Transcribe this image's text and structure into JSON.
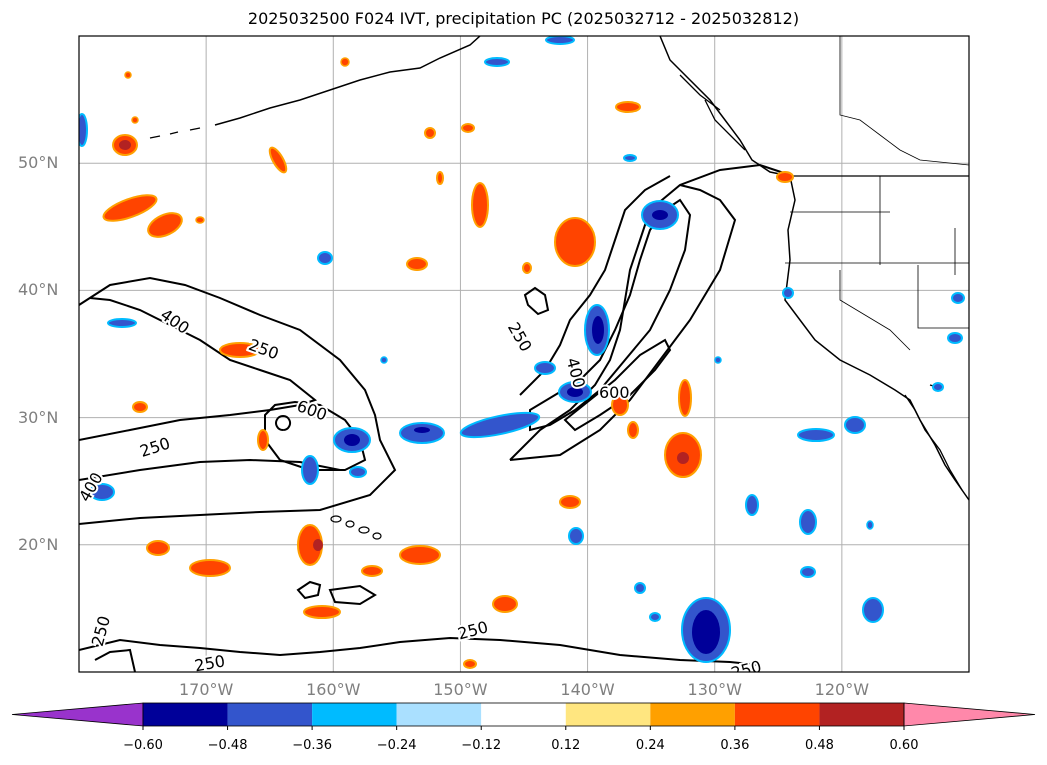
{
  "title": "2025032500 F024 IVT, precipitation PC (2025032712 - 2025032812)",
  "map": {
    "lat_range": [
      10,
      60
    ],
    "lon_range": [
      -180,
      -110
    ],
    "lat_ticks": [
      {
        "value": 50,
        "label": "50°N"
      },
      {
        "value": 40,
        "label": "40°N"
      },
      {
        "value": 30,
        "label": "30°N"
      },
      {
        "value": 20,
        "label": "20°N"
      }
    ],
    "lon_ticks": [
      {
        "value": -170,
        "label": "170°W"
      },
      {
        "value": -160,
        "label": "160°W"
      },
      {
        "value": -150,
        "label": "150°W"
      },
      {
        "value": -140,
        "label": "140°W"
      },
      {
        "value": -130,
        "label": "130°W"
      },
      {
        "value": -120,
        "label": "120°W"
      }
    ],
    "grid": true,
    "contour_labels": [
      {
        "text": "400",
        "lon": -172.5,
        "lat": 37.5,
        "rot": 35
      },
      {
        "text": "250",
        "lon": -165.5,
        "lat": 35.3,
        "rot": 20
      },
      {
        "text": "600",
        "lon": -161.7,
        "lat": 30.5,
        "rot": 20
      },
      {
        "text": "250",
        "lon": -174,
        "lat": 27.6,
        "rot": -18
      },
      {
        "text": "400",
        "lon": -179,
        "lat": 24.5,
        "rot": -60
      },
      {
        "text": "250",
        "lon": -178.2,
        "lat": 13.2,
        "rot": -75
      },
      {
        "text": "250",
        "lon": -149,
        "lat": 13.2,
        "rot": -15
      },
      {
        "text": "250",
        "lon": -169.7,
        "lat": 10.6,
        "rot": -10
      },
      {
        "text": "250",
        "lon": -145.4,
        "lat": 36.3,
        "rot": 60
      },
      {
        "text": "400",
        "lon": -141,
        "lat": 33.5,
        "rot": 75
      },
      {
        "text": "600",
        "lon": -137.9,
        "lat": 31.9,
        "rot": 0
      },
      {
        "text": "250",
        "lon": -127.5,
        "lat": 10.1,
        "rot": -15
      }
    ]
  },
  "colorbar": {
    "boundaries": [
      -0.6,
      -0.48,
      -0.36,
      -0.24,
      -0.12,
      0.12,
      0.24,
      0.36,
      0.48,
      0.6
    ],
    "colors": [
      "#9933cc",
      "#000099",
      "#3355cc",
      "#00bbff",
      "#aae0ff",
      "#ffffff",
      "#ffe680",
      "#ffa000",
      "#ff4400",
      "#b22222",
      "#ff88aa"
    ],
    "tick_labels": [
      "−0.60",
      "−0.48",
      "−0.36",
      "−0.24",
      "−0.12",
      "0.12",
      "0.24",
      "0.36",
      "0.48",
      "0.60"
    ]
  }
}
